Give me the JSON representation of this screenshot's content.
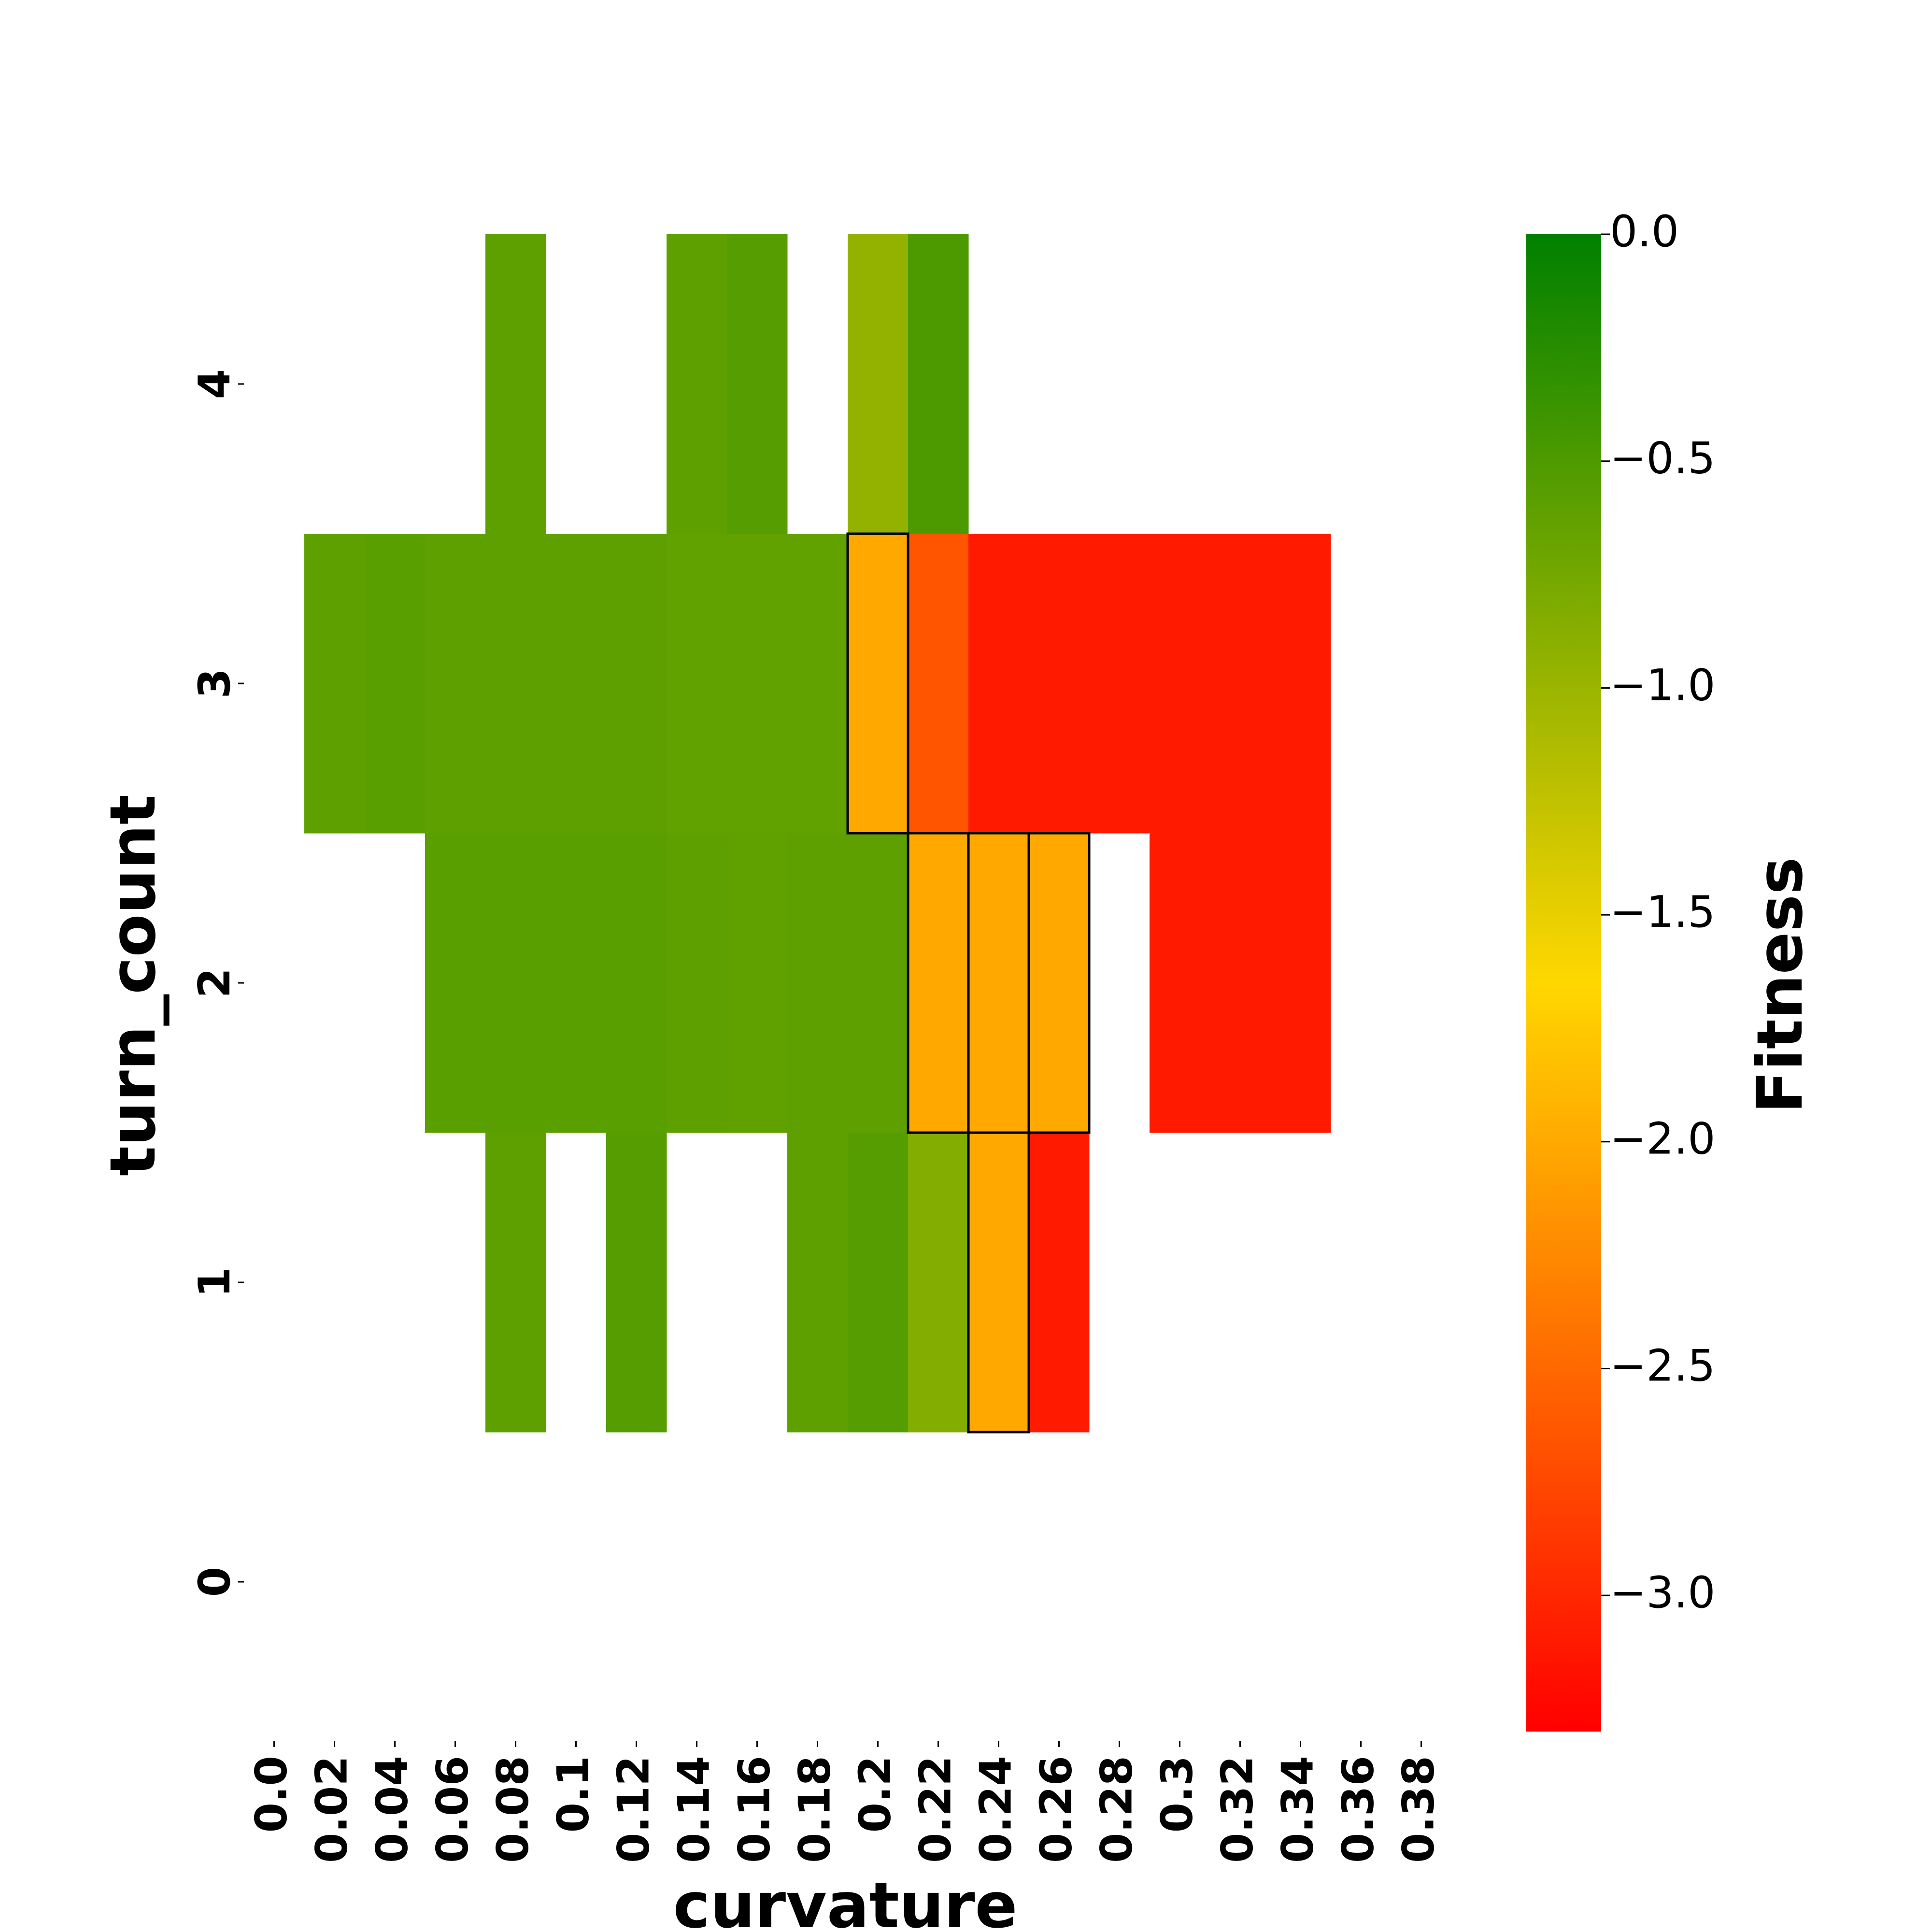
{
  "chart_data": {
    "type": "heatmap",
    "xlabel": "curvature",
    "ylabel": "turn_count",
    "x_categories": [
      "0.0",
      "0.02",
      "0.04",
      "0.06",
      "0.08",
      "0.1",
      "0.12",
      "0.14",
      "0.16",
      "0.18",
      "0.2",
      "0.22",
      "0.24",
      "0.26",
      "0.28",
      "0.3",
      "0.32",
      "0.34",
      "0.36",
      "0.38"
    ],
    "y_categories": [
      "4",
      "3",
      "2",
      "1",
      "0"
    ],
    "cells": [
      {
        "x": "0.08",
        "y": "4",
        "value": -0.6
      },
      {
        "x": "0.14",
        "y": "4",
        "value": -0.6
      },
      {
        "x": "0.16",
        "y": "4",
        "value": -0.55
      },
      {
        "x": "0.2",
        "y": "4",
        "value": -0.95
      },
      {
        "x": "0.22",
        "y": "4",
        "value": -0.5
      },
      {
        "x": "0.02",
        "y": "3",
        "value": -0.6
      },
      {
        "x": "0.04",
        "y": "3",
        "value": -0.58
      },
      {
        "x": "0.06",
        "y": "3",
        "value": -0.6
      },
      {
        "x": "0.08",
        "y": "3",
        "value": -0.6
      },
      {
        "x": "0.1",
        "y": "3",
        "value": -0.6
      },
      {
        "x": "0.12",
        "y": "3",
        "value": -0.6
      },
      {
        "x": "0.14",
        "y": "3",
        "value": -0.63
      },
      {
        "x": "0.16",
        "y": "3",
        "value": -0.63
      },
      {
        "x": "0.18",
        "y": "3",
        "value": -0.63
      },
      {
        "x": "0.2",
        "y": "3",
        "value": -2.0,
        "highlight": true
      },
      {
        "x": "0.22",
        "y": "3",
        "value": -2.65
      },
      {
        "x": "0.24",
        "y": "3",
        "value": -3.1
      },
      {
        "x": "0.26",
        "y": "3",
        "value": -3.1
      },
      {
        "x": "0.28",
        "y": "3",
        "value": -3.1
      },
      {
        "x": "0.3",
        "y": "3",
        "value": -3.1
      },
      {
        "x": "0.32",
        "y": "3",
        "value": -3.1
      },
      {
        "x": "0.34",
        "y": "3",
        "value": -3.1
      },
      {
        "x": "0.06",
        "y": "2",
        "value": -0.58
      },
      {
        "x": "0.08",
        "y": "2",
        "value": -0.58
      },
      {
        "x": "0.1",
        "y": "2",
        "value": -0.58
      },
      {
        "x": "0.12",
        "y": "2",
        "value": -0.58
      },
      {
        "x": "0.14",
        "y": "2",
        "value": -0.6
      },
      {
        "x": "0.16",
        "y": "2",
        "value": -0.62
      },
      {
        "x": "0.18",
        "y": "2",
        "value": -0.6
      },
      {
        "x": "0.2",
        "y": "2",
        "value": -0.6
      },
      {
        "x": "0.22",
        "y": "2",
        "value": -2.0,
        "highlight": true
      },
      {
        "x": "0.24",
        "y": "2",
        "value": -2.0,
        "highlight": true
      },
      {
        "x": "0.26",
        "y": "2",
        "value": -2.0,
        "highlight": true
      },
      {
        "x": "0.3",
        "y": "2",
        "value": -3.1
      },
      {
        "x": "0.32",
        "y": "2",
        "value": -3.1
      },
      {
        "x": "0.34",
        "y": "2",
        "value": -3.1
      },
      {
        "x": "0.08",
        "y": "1",
        "value": -0.6
      },
      {
        "x": "0.12",
        "y": "1",
        "value": -0.55
      },
      {
        "x": "0.18",
        "y": "1",
        "value": -0.6
      },
      {
        "x": "0.2",
        "y": "1",
        "value": -0.55
      },
      {
        "x": "0.22",
        "y": "1",
        "value": -0.85
      },
      {
        "x": "0.24",
        "y": "1",
        "value": -2.0,
        "highlight": true
      },
      {
        "x": "0.26",
        "y": "1",
        "value": -3.1
      }
    ],
    "colorbar": {
      "title": "Fitness",
      "min": -3.3,
      "max": 0.0,
      "ticks": [
        "0.0",
        "−0.5",
        "−1.0",
        "−1.5",
        "−2.0",
        "−2.5",
        "−3.0"
      ],
      "tick_values": [
        0.0,
        -0.5,
        -1.0,
        -1.5,
        -2.0,
        -2.5,
        -3.0
      ],
      "colormap": [
        {
          "value": -3.3,
          "color": "#ff0000"
        },
        {
          "value": -1.65,
          "color": "#ffd700"
        },
        {
          "value": 0.0,
          "color": "#008000"
        }
      ]
    },
    "grid": false
  }
}
